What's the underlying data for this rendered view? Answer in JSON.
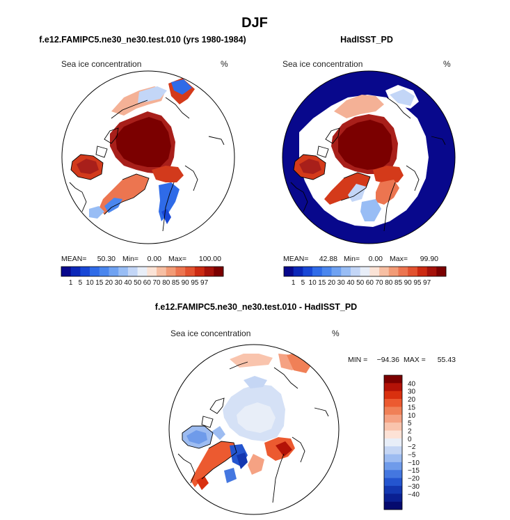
{
  "page": {
    "title": "DJF"
  },
  "panels": [
    {
      "id": "model",
      "title": "f.e12.FAMIPC5.ne30_ne30.test.010 (yrs 1980-1984)",
      "variable": "Sea ice concentration",
      "units": "%",
      "stats": {
        "mean_label": "MEAN=",
        "mean": "50.30",
        "min_label": "Min=",
        "min": "0.00",
        "max_label": "Max=",
        "max": "100.00"
      }
    },
    {
      "id": "obs",
      "title": "HadISST_PD",
      "variable": "Sea ice concentration",
      "units": "%",
      "stats": {
        "mean_label": "MEAN=",
        "mean": "42.88",
        "min_label": "Min=",
        "min": "0.00",
        "max_label": "Max=",
        "max": "99.90"
      }
    },
    {
      "id": "diff",
      "title": "f.e12.FAMIPC5.ne30_ne30.test.010 - HadISST_PD",
      "variable": "Sea ice concentration",
      "units": "%",
      "stats": {
        "min_label": "MIN =",
        "min": "−94.36",
        "max_label": "MAX =",
        "max": "55.43"
      }
    }
  ],
  "colorbar_abs": {
    "labels": [
      "1",
      "5",
      "10",
      "15",
      "20",
      "30",
      "40",
      "50",
      "60",
      "70",
      "80",
      "85",
      "90",
      "95",
      "97"
    ],
    "colors": [
      "#08088c",
      "#0b27b8",
      "#1847d6",
      "#2f6be8",
      "#4a86ee",
      "#6fa2f2",
      "#98bdf5",
      "#c3d6f7",
      "#e8eef8",
      "#fbe3d6",
      "#f7bfa3",
      "#f29b76",
      "#ec7550",
      "#e2522f",
      "#cc2a12",
      "#a5120a",
      "#7b0000"
    ]
  },
  "colorbar_diff": {
    "labels": [
      "40",
      "30",
      "20",
      "15",
      "10",
      "5",
      "2",
      "0",
      "−2",
      "−5",
      "−10",
      "−15",
      "−20",
      "−30",
      "−40"
    ],
    "colors": [
      "#7b0000",
      "#b31207",
      "#d9300f",
      "#ec5a30",
      "#f08057",
      "#f5a283",
      "#f9c4ad",
      "#fde2d6",
      "#e8eef8",
      "#c5d6f4",
      "#9dbcf1",
      "#6f9bea",
      "#4477e0",
      "#2455cf",
      "#1337b0",
      "#0a1f91",
      "#050a6e"
    ]
  }
}
